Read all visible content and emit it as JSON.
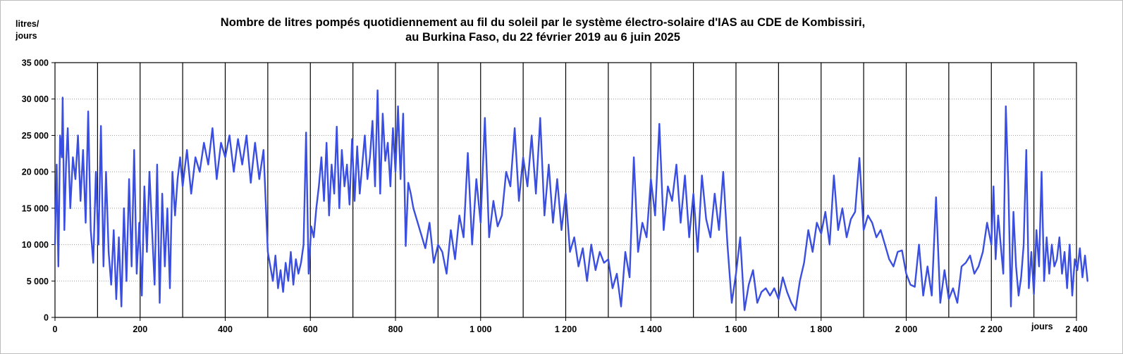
{
  "chart_data": {
    "type": "line",
    "title_lines": [
      "Nombre de litres pompés quotidiennement au fil du soleil par le système électro-solaire d'IAS au CDE de Kombissiri,",
      "au Burkina Faso, du 22 février 2019 au 6 juin 2025"
    ],
    "ylabel_lines": [
      "litres/",
      "jours"
    ],
    "xlabel": "jours",
    "xlim": [
      0,
      2400
    ],
    "ylim": [
      0,
      35000
    ],
    "x_ticks": [
      0,
      200,
      400,
      600,
      800,
      1000,
      1200,
      1400,
      1600,
      1800,
      2000,
      2200,
      2400
    ],
    "x_tick_labels": [
      "0",
      "200",
      "400",
      "600",
      "800",
      "1 000",
      "1 200",
      "1 400",
      "1 600",
      "1 800",
      "2 000",
      "2 200",
      "2 400"
    ],
    "y_ticks": [
      0,
      5000,
      10000,
      15000,
      20000,
      25000,
      30000,
      35000
    ],
    "y_tick_labels": [
      "0",
      "5 000",
      "10 000",
      "15 000",
      "20 000",
      "25 000",
      "30 000",
      "35 000"
    ],
    "vertical_gridlines_every": 100,
    "horizontal_gridlines": "dotted",
    "line_color": "#3a4ee0",
    "series": [
      {
        "x": [
          0,
          4,
          8,
          12,
          16,
          18,
          22,
          26,
          30,
          36,
          42,
          48,
          54,
          60,
          66,
          72,
          78,
          84,
          90,
          96,
          102,
          108,
          114,
          120,
          126,
          132,
          138,
          144,
          150,
          156,
          162,
          168,
          174,
          180,
          186,
          192,
          198,
          204,
          210,
          216,
          222,
          228,
          234,
          240,
          246,
          252,
          258,
          264,
          270,
          276,
          282,
          288,
          294,
          300,
          310,
          320,
          330,
          340,
          350,
          360,
          370,
          380,
          390,
          400,
          410,
          420,
          430,
          440,
          450,
          460,
          470,
          480,
          490,
          500,
          506,
          512,
          518,
          524,
          530,
          536,
          542,
          548,
          554,
          560,
          566,
          572,
          578,
          584,
          590,
          596,
          602,
          608,
          614,
          620,
          626,
          632,
          638,
          644,
          650,
          656,
          662,
          668,
          674,
          680,
          686,
          692,
          698,
          704,
          710,
          716,
          722,
          728,
          734,
          740,
          746,
          752,
          758,
          764,
          770,
          776,
          782,
          788,
          794,
          800,
          806,
          812,
          818,
          824,
          830,
          836,
          842,
          870,
          880,
          890,
          900,
          910,
          920,
          930,
          940,
          950,
          960,
          970,
          980,
          990,
          1000,
          1010,
          1020,
          1030,
          1040,
          1050,
          1060,
          1070,
          1080,
          1090,
          1100,
          1110,
          1120,
          1130,
          1140,
          1150,
          1160,
          1170,
          1180,
          1190,
          1200,
          1210,
          1220,
          1230,
          1240,
          1250,
          1260,
          1270,
          1280,
          1290,
          1300,
          1310,
          1320,
          1330,
          1340,
          1350,
          1360,
          1370,
          1380,
          1390,
          1400,
          1410,
          1420,
          1430,
          1440,
          1450,
          1460,
          1470,
          1480,
          1490,
          1500,
          1510,
          1520,
          1530,
          1540,
          1550,
          1560,
          1570,
          1580,
          1590,
          1600,
          1610,
          1620,
          1630,
          1640,
          1650,
          1660,
          1670,
          1680,
          1690,
          1700,
          1710,
          1720,
          1730,
          1740,
          1750,
          1760,
          1770,
          1780,
          1790,
          1800,
          1810,
          1820,
          1830,
          1840,
          1850,
          1860,
          1870,
          1880,
          1890,
          1900,
          1910,
          1920,
          1930,
          1940,
          1950,
          1960,
          1970,
          1980,
          1990,
          2000,
          2010,
          2020,
          2030,
          2040,
          2050,
          2060,
          2070,
          2080,
          2090,
          2100,
          2110,
          2120,
          2130,
          2140,
          2150,
          2160,
          2170,
          2180,
          2190,
          2200,
          2205,
          2210,
          2216,
          2222,
          2228,
          2234,
          2240,
          2246,
          2252,
          2258,
          2264,
          2270,
          2276,
          2282,
          2288,
          2294,
          2300,
          2306,
          2312,
          2318,
          2324,
          2330,
          2336,
          2342,
          2348,
          2354,
          2360,
          2366,
          2372,
          2378,
          2384,
          2390,
          2396,
          2402,
          2408,
          2414,
          2420,
          2426
        ],
        "y": [
          10000,
          21000,
          7000,
          25000,
          22000,
          30200,
          12000,
          21000,
          26000,
          15000,
          22000,
          19000,
          25000,
          16000,
          23000,
          13000,
          28300,
          12000,
          7500,
          20000,
          10000,
          26300,
          7000,
          20000,
          9000,
          4500,
          12000,
          2500,
          11000,
          1500,
          15000,
          5000,
          19000,
          7000,
          23000,
          6000,
          13000,
          3000,
          18000,
          9000,
          20000,
          12000,
          4500,
          21000,
          2000,
          17000,
          7000,
          15000,
          4000,
          20000,
          14000,
          19000,
          22000,
          18000,
          23000,
          17000,
          22000,
          20000,
          24000,
          21000,
          26000,
          19000,
          24000,
          22000,
          25000,
          20000,
          24500,
          21000,
          25000,
          18500,
          24000,
          19000,
          23000,
          9000,
          7000,
          5000,
          8500,
          4000,
          6500,
          3500,
          7500,
          5000,
          9000,
          4500,
          8000,
          6000,
          7500,
          10000,
          25400,
          6000,
          12500,
          11000,
          15000,
          18000,
          22000,
          16000,
          24000,
          14000,
          21000,
          17000,
          26200,
          15000,
          23000,
          18000,
          21000,
          15500,
          24500,
          16000,
          23500,
          17000,
          21000,
          25000,
          19000,
          22000,
          27000,
          18000,
          31200,
          17000,
          28000,
          21500,
          24000,
          18000,
          26000,
          20000,
          29000,
          19000,
          28000,
          9800,
          18500,
          17000,
          15000,
          9500,
          13000,
          7500,
          10000,
          9000,
          6000,
          12000,
          8000,
          14000,
          11000,
          22600,
          10000,
          19000,
          13000,
          27400,
          11000,
          16000,
          12500,
          14000,
          20000,
          18000,
          26000,
          16000,
          22000,
          18000,
          25000,
          17000,
          27400,
          14000,
          21000,
          13000,
          19000,
          12000,
          17000,
          9000,
          11000,
          7000,
          9500,
          5000,
          10000,
          6500,
          9000,
          7500,
          8000,
          4000,
          6000,
          1500,
          9000,
          5500,
          22000,
          9000,
          13000,
          11000,
          19000,
          14000,
          26600,
          12000,
          18000,
          16000,
          21000,
          13000,
          19500,
          11000,
          17000,
          9000,
          19500,
          13500,
          11000,
          17000,
          12000,
          20000,
          10000,
          2000,
          6000,
          11000,
          1000,
          4500,
          6500,
          2000,
          3500,
          4000,
          3000,
          4000,
          2500,
          5500,
          3500,
          2000,
          1000,
          5000,
          7500,
          12000,
          9000,
          13000,
          11500,
          14500,
          10000,
          19500,
          12000,
          15000,
          11000,
          13500,
          14500,
          21900,
          12000,
          14000,
          13000,
          11000,
          12000,
          10000,
          8000,
          7000,
          9000,
          9200,
          6000,
          4500,
          4200,
          10000,
          3000,
          7000,
          3000,
          16500,
          2000,
          6500,
          2500,
          4000,
          2000,
          7000,
          7500,
          8500,
          6000,
          7000,
          9000,
          13000,
          10000,
          18000,
          8000,
          14000,
          10000,
          6000,
          29000,
          18000,
          1500,
          14500,
          7000,
          3000,
          5500,
          10000,
          23000,
          4000,
          9000,
          3200,
          12000,
          7000,
          20000,
          5000,
          11000,
          6000,
          10000,
          7000,
          8000,
          11000,
          6000,
          9000,
          4000,
          10000,
          3000,
          8000,
          6500,
          9500,
          5500,
          8500,
          5000
        ]
      }
    ]
  }
}
